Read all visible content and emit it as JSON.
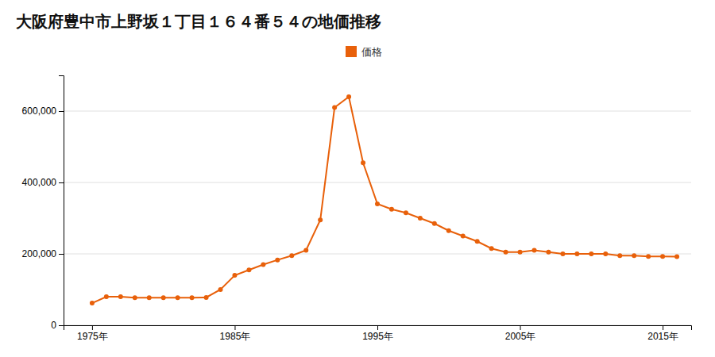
{
  "chart_data": {
    "type": "line",
    "title": "大阪府豊中市上野坂１丁目１６４番５４の地価推移",
    "x": [
      1975,
      1976,
      1977,
      1978,
      1979,
      1980,
      1981,
      1982,
      1983,
      1984,
      1985,
      1986,
      1987,
      1988,
      1989,
      1990,
      1991,
      1992,
      1993,
      1994,
      1995,
      1996,
      1997,
      1998,
      1999,
      2000,
      2001,
      2002,
      2003,
      2004,
      2005,
      2006,
      2007,
      2008,
      2009,
      2010,
      2011,
      2012,
      2013,
      2014,
      2015,
      2016
    ],
    "series": [
      {
        "name": "価格",
        "color": "#e8600a",
        "marker": "circle",
        "values": [
          62000,
          80000,
          80000,
          77000,
          77000,
          77000,
          77000,
          77000,
          78000,
          100000,
          140000,
          155000,
          170000,
          183000,
          195000,
          210000,
          295000,
          610000,
          640000,
          455000,
          340000,
          325000,
          315000,
          300000,
          285000,
          265000,
          250000,
          235000,
          215000,
          205000,
          205000,
          210000,
          205000,
          200000,
          200000,
          200000,
          200000,
          195000,
          195000,
          193000,
          193000,
          192000
        ]
      }
    ],
    "xlim": [
      1973,
      2017
    ],
    "ylim": [
      0,
      700000
    ],
    "xticks": [
      {
        "value": 1975,
        "label": "1975年"
      },
      {
        "value": 1985,
        "label": "1985年"
      },
      {
        "value": 1995,
        "label": "1995年"
      },
      {
        "value": 2005,
        "label": "2005年"
      },
      {
        "value": 2015,
        "label": "2015年"
      }
    ],
    "yticks": [
      0,
      {
        "value": 200000,
        "label": "200,000"
      },
      {
        "value": 400000,
        "label": "400,000"
      },
      {
        "value": 600000,
        "label": "600,000"
      }
    ],
    "grid": true,
    "legend": "top"
  }
}
